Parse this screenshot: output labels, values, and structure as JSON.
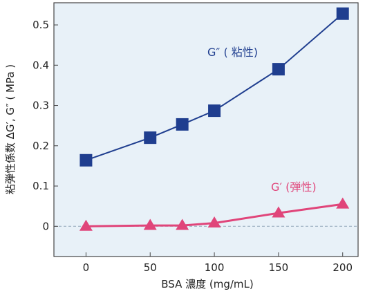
{
  "chart_data": {
    "type": "line",
    "xlabel": "BSA 濃度 (mg/mL)",
    "ylabel": "粘弾性係数 ΔG′, G″ ( MPa )",
    "xlim": [
      -25,
      212
    ],
    "ylim": [
      -0.075,
      0.555
    ],
    "x_ticks": [
      0,
      50,
      100,
      150,
      200
    ],
    "x_tick_labels": [
      "0",
      "50",
      "100",
      "150",
      "200"
    ],
    "y_ticks": [
      0,
      0.1,
      0.2,
      0.3,
      0.4,
      0.5
    ],
    "y_tick_labels": [
      "0",
      "0.1",
      "0.2",
      "0.3",
      "0.4",
      "0.5"
    ],
    "zero_line": true,
    "grid": false,
    "background_color": "#e8f1f8",
    "series": [
      {
        "name": "G″ ( 粘性)",
        "color": "#1f3e8f",
        "marker": "square",
        "x": [
          0,
          50,
          75,
          100,
          150,
          200
        ],
        "y": [
          0.164,
          0.22,
          0.253,
          0.287,
          0.39,
          0.528
        ]
      },
      {
        "name": "G′ (弾性)",
        "color": "#e0457a",
        "marker": "triangle",
        "x": [
          0,
          50,
          75,
          100,
          150,
          200
        ],
        "y": [
          0.0,
          0.002,
          0.002,
          0.008,
          0.033,
          0.055
        ]
      }
    ]
  }
}
